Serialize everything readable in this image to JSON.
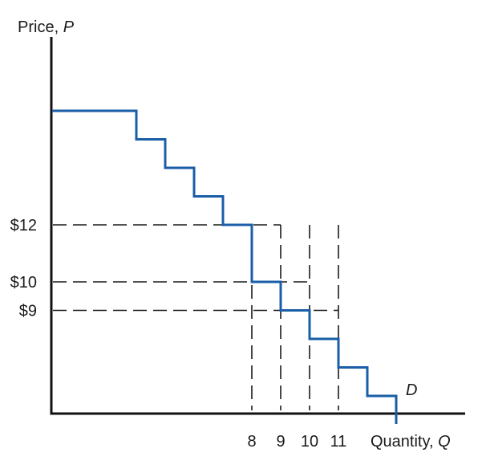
{
  "chart_data": {
    "type": "line",
    "subtype": "step",
    "ylabel": "Price, ",
    "ylabel_var": "P",
    "xlabel": "Quantity, ",
    "xlabel_var": "Q",
    "series": [
      {
        "name": "D",
        "color": "#1a5ea8",
        "steps": [
          {
            "q": 4,
            "p": 16
          },
          {
            "q": 5,
            "p": 15
          },
          {
            "q": 6,
            "p": 14
          },
          {
            "q": 7,
            "p": 13
          },
          {
            "q": 8,
            "p": 12
          },
          {
            "q": 9,
            "p": 10
          },
          {
            "q": 10,
            "p": 9
          },
          {
            "q": 11,
            "p": 8
          },
          {
            "q": 12,
            "p": 7
          },
          {
            "q": 13,
            "p": 6
          }
        ]
      }
    ],
    "y_ticks": [
      {
        "label": "$12",
        "value": 12
      },
      {
        "label": "$10",
        "value": 10
      },
      {
        "label": "$9",
        "value": 9
      }
    ],
    "x_ticks": [
      {
        "label": "8",
        "value": 8
      },
      {
        "label": "9",
        "value": 9
      },
      {
        "label": "10",
        "value": 10
      },
      {
        "label": "11",
        "value": 11
      }
    ],
    "guide_lines": [
      {
        "q": 8,
        "p": 12
      },
      {
        "q": 9,
        "p": 10
      },
      {
        "q": 10,
        "p": 9
      }
    ],
    "vertical_guides": [
      8,
      9,
      10,
      11
    ],
    "curve_label": "D",
    "grid": false,
    "axis_color": "#111111"
  }
}
